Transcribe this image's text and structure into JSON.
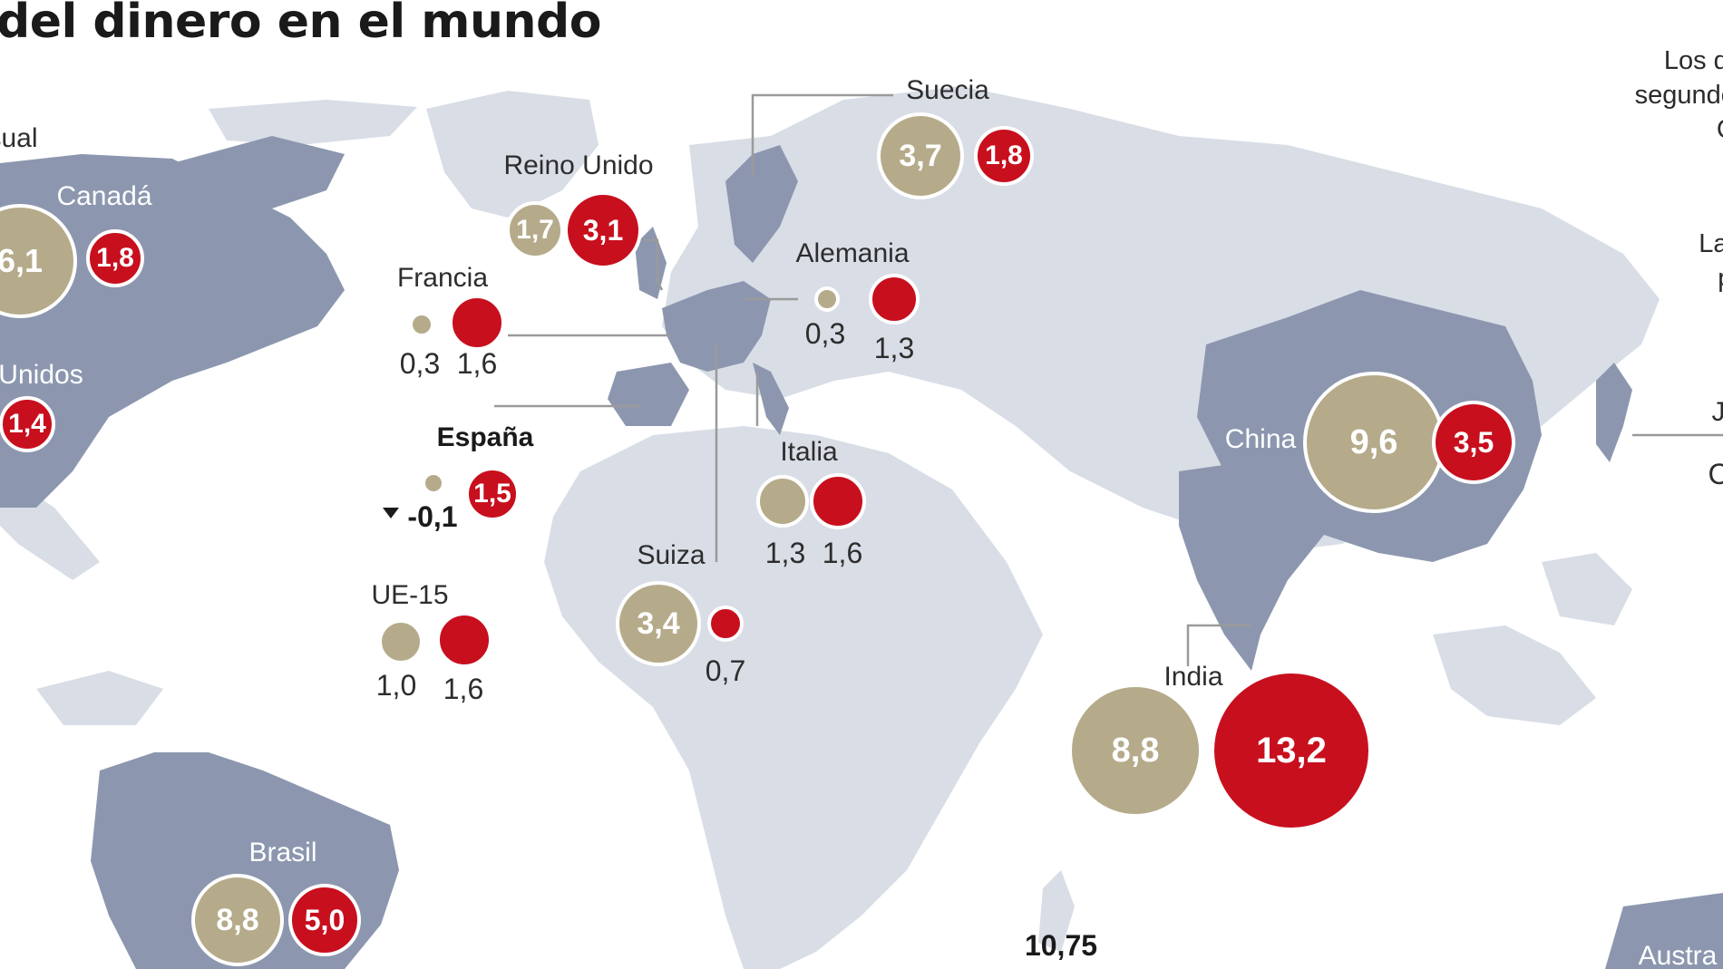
{
  "title": "del dinero en el mundo",
  "notes": {
    "top_right": [
      "Los dat",
      "segundo t",
      "Ca"
    ],
    "mid_right": [
      "Las",
      "pr"
    ]
  },
  "partial_labels": {
    "left_top": "sual",
    "right_japan": "J",
    "right_japan_value": "C",
    "australia": "Austra"
  },
  "colors": {
    "tan": "#b5ab8b",
    "red": "#c80f1e",
    "land_light": "#d9dde6",
    "land_dark": "#8c97af",
    "ocean": "#ffffff"
  },
  "countries": {
    "canada": {
      "name": "Canadá",
      "tan": "6,1",
      "red": "1,8"
    },
    "usa": {
      "name": "Unidos",
      "red": "1,4"
    },
    "suecia": {
      "name": "Suecia",
      "tan": "3,7",
      "red": "1,8"
    },
    "reino": {
      "name": "Reino Unido",
      "tan": "1,7",
      "red": "3,1"
    },
    "francia": {
      "name": "Francia",
      "tan": "0,3",
      "red": "1,6"
    },
    "alemania": {
      "name": "Alemania",
      "tan": "0,3",
      "red": "1,3"
    },
    "espana": {
      "name": "España",
      "tan": "-0,1",
      "red": "1,5"
    },
    "italia": {
      "name": "Italia",
      "tan": "1,3",
      "red": "1,6"
    },
    "suiza": {
      "name": "Suiza",
      "tan": "3,4",
      "red": "0,7"
    },
    "ue15": {
      "name": "UE-15",
      "tan": "1,0",
      "red": "1,6"
    },
    "china": {
      "name": "China",
      "tan": "9,6",
      "red": "3,5"
    },
    "india": {
      "name": "India",
      "tan": "8,8",
      "red": "13,2"
    },
    "brasil": {
      "name": "Brasil",
      "tan": "8,8",
      "red": "5,0"
    }
  },
  "extra_value": "10,75"
}
